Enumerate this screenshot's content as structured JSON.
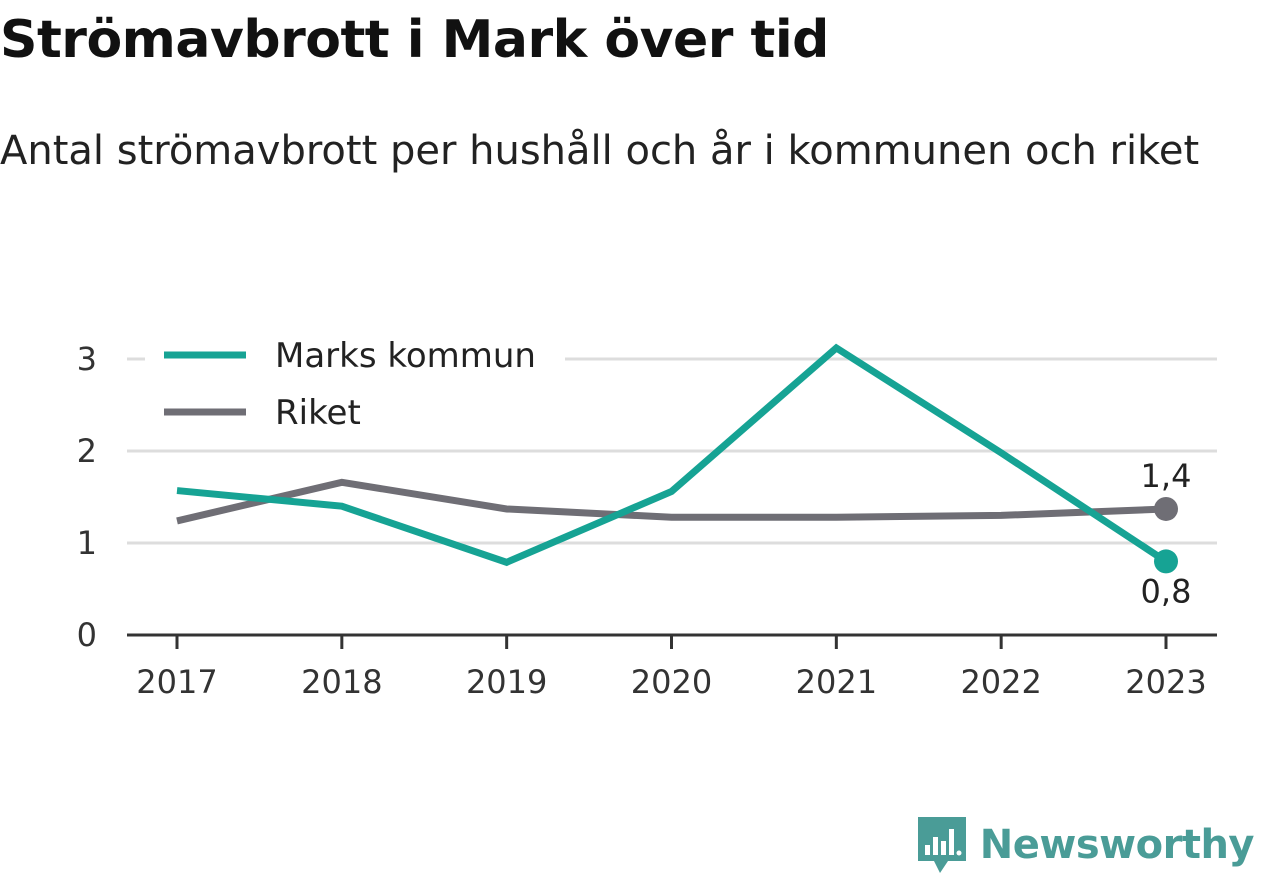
{
  "header": {
    "title": "Strömavbrott i Mark över tid",
    "subtitle": "Antal strömavbrott per hushåll och år i kommunen och riket"
  },
  "brand": {
    "name": "Newsworthy"
  },
  "colors": {
    "marks": "#16a394",
    "riket": "#6f6e75",
    "grid": "#dddddd",
    "axis": "#333333",
    "brand": "#4a9c97"
  },
  "chart_data": {
    "type": "line",
    "x": [
      "2017",
      "2018",
      "2019",
      "2020",
      "2021",
      "2022",
      "2023"
    ],
    "series": [
      {
        "name": "Marks kommun",
        "values": [
          1.57,
          1.4,
          0.79,
          1.56,
          3.12,
          1.98,
          0.8
        ],
        "end_label": "0,8"
      },
      {
        "name": "Riket",
        "values": [
          1.24,
          1.66,
          1.37,
          1.28,
          1.28,
          1.3,
          1.37
        ],
        "end_label": "1,4"
      }
    ],
    "y_ticks": [
      "0",
      "1",
      "2",
      "3"
    ],
    "ylim": [
      0,
      3.3
    ],
    "grid": true,
    "legend": "top-left"
  }
}
